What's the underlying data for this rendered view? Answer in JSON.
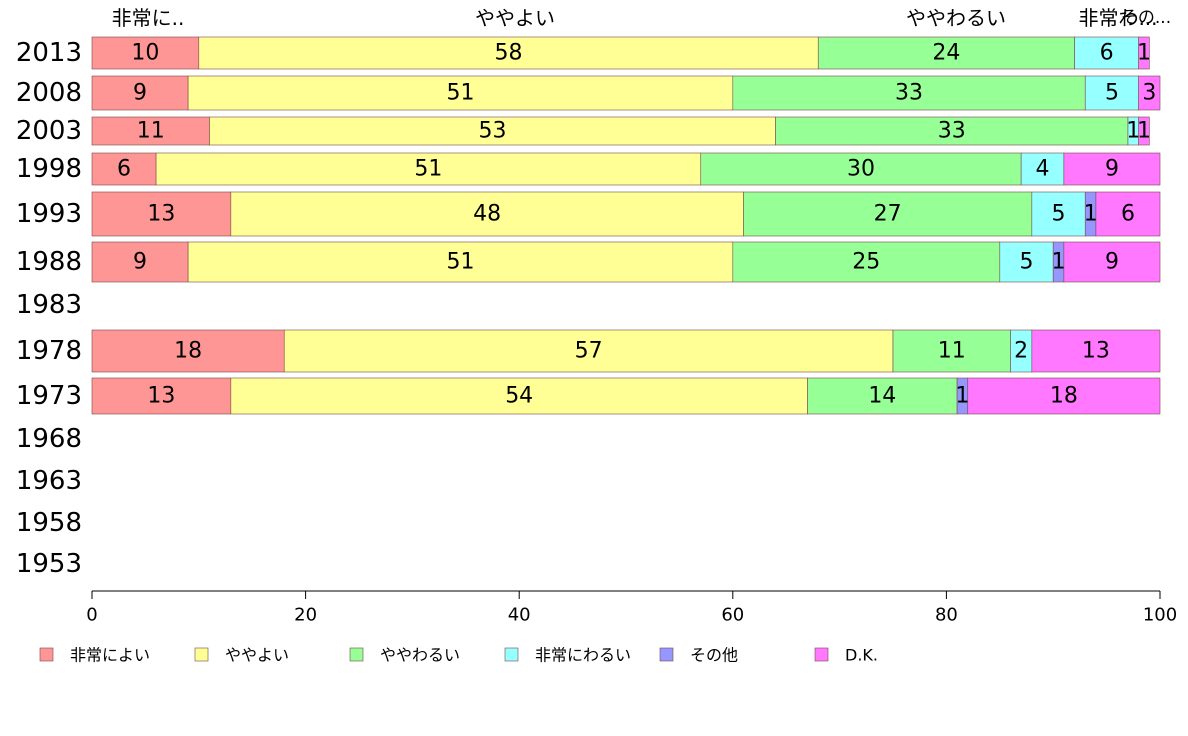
{
  "chart_data": {
    "type": "bar",
    "orientation": "horizontal",
    "stacked": true,
    "categories": [
      "2013",
      "2008",
      "2003",
      "1998",
      "1993",
      "1988",
      "1983",
      "1978",
      "1973",
      "1968",
      "1963",
      "1958",
      "1953"
    ],
    "series": [
      {
        "name": "非常によい",
        "color": "#ff9696",
        "values": [
          10,
          9,
          11,
          6,
          13,
          9,
          null,
          18,
          13,
          null,
          null,
          null,
          null
        ]
      },
      {
        "name": "ややよい",
        "color": "#ffff96",
        "values": [
          58,
          51,
          53,
          51,
          48,
          51,
          null,
          57,
          54,
          null,
          null,
          null,
          null
        ]
      },
      {
        "name": "ややわるい",
        "color": "#96ff96",
        "values": [
          24,
          33,
          33,
          30,
          27,
          25,
          null,
          11,
          14,
          null,
          null,
          null,
          null
        ]
      },
      {
        "name": "非常にわるい",
        "color": "#96ffff",
        "values": [
          6,
          5,
          1,
          4,
          5,
          5,
          null,
          2,
          null,
          null,
          null,
          null,
          null
        ]
      },
      {
        "name": "その他",
        "color": "#9696ff",
        "values": [
          null,
          null,
          null,
          null,
          1,
          1,
          null,
          null,
          1,
          null,
          null,
          null,
          null
        ]
      },
      {
        "name": "D.K.",
        "color": "#ff78ff",
        "values": [
          1,
          3,
          1,
          9,
          6,
          9,
          null,
          13,
          18,
          null,
          null,
          null,
          null
        ]
      }
    ],
    "top_labels": [
      "非常に..",
      "ややよい",
      "ややわるい",
      "非常わ...",
      "その..."
    ],
    "xlim": [
      0,
      100
    ],
    "xticks": [
      "0",
      "20",
      "40",
      "60",
      "80",
      "100"
    ],
    "grid": false,
    "legend_position": "bottom"
  }
}
